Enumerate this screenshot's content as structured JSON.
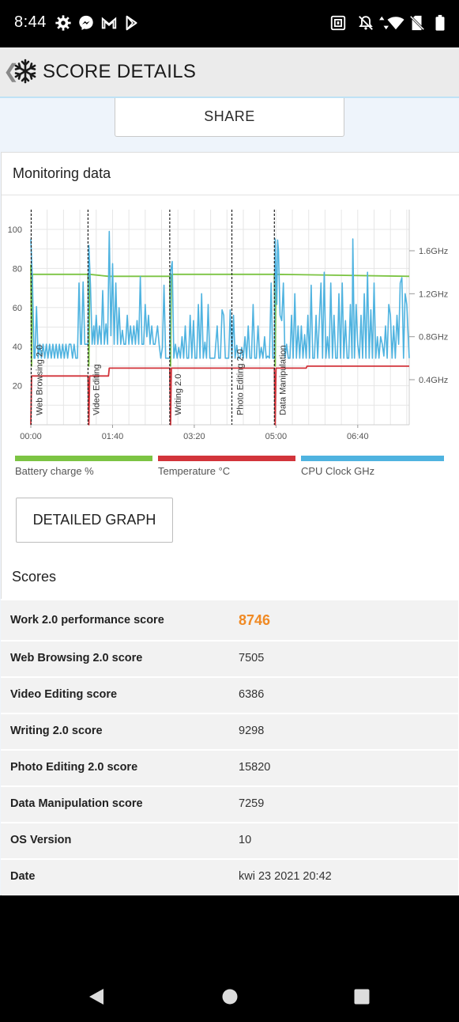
{
  "status_bar": {
    "time": "8:44",
    "icons": [
      "settings-icon",
      "messenger-icon",
      "gmail-icon",
      "play-store-icon",
      "nfc-icon",
      "notifications-off-icon",
      "data-arrows-icon",
      "wifi-icon",
      "no-sim-icon",
      "battery-icon"
    ]
  },
  "app_bar": {
    "title": "SCORE DETAILS",
    "icons": [
      "back-chevron-icon",
      "3dmark-snowflake-logo-icon"
    ]
  },
  "share_label": "SHARE",
  "monitoring": {
    "title": "Monitoring data"
  },
  "chart_data": {
    "type": "line",
    "x_tick_labels": [
      "00:00",
      "01:40",
      "03:20",
      "05:00",
      "06:40"
    ],
    "x_tick_seconds": [
      0,
      100,
      200,
      300,
      400
    ],
    "xlim": [
      0,
      463
    ],
    "y_left_ticks": [
      20,
      40,
      60,
      80,
      100
    ],
    "ylim_left": [
      0,
      105
    ],
    "y_right_tick_labels": [
      "0.4GHz",
      "0.8GHz",
      "1.2GHz",
      "1.6GHz"
    ],
    "y_right_ticks_ghz": [
      0.4,
      0.8,
      1.2,
      1.6
    ],
    "ylim_right_ghz": [
      0,
      1.8
    ],
    "grid": true,
    "legend_position": "bottom",
    "segments": [
      {
        "label": "Web Browsing 2.0",
        "start": 0
      },
      {
        "label": "Video Editing",
        "start": 70
      },
      {
        "label": "Writing 2.0",
        "start": 170
      },
      {
        "label": "Photo Editing 2.0",
        "start": 246
      },
      {
        "label": "Data Manipulation",
        "start": 298
      }
    ],
    "series": [
      {
        "name": "Battery charge %",
        "color": "#7cc443",
        "points": [
          [
            0,
            82
          ],
          [
            1,
            30
          ],
          [
            2,
            77
          ],
          [
            70,
            77
          ],
          [
            71,
            30
          ],
          [
            72,
            77
          ],
          [
            95,
            76
          ],
          [
            170,
            76
          ],
          [
            171,
            30
          ],
          [
            172,
            77
          ],
          [
            298,
            77
          ],
          [
            299,
            30
          ],
          [
            300,
            77
          ],
          [
            463,
            76
          ]
        ]
      },
      {
        "name": "Temperature °C",
        "color": "#d2343b",
        "points": [
          [
            0,
            0
          ],
          [
            1,
            25
          ],
          [
            70,
            25
          ],
          [
            71,
            0
          ],
          [
            72,
            25
          ],
          [
            95,
            25
          ],
          [
            96,
            29
          ],
          [
            170,
            29
          ],
          [
            171,
            0
          ],
          [
            172,
            29
          ],
          [
            298,
            29
          ],
          [
            299,
            0
          ],
          [
            300,
            29
          ],
          [
            337,
            29
          ],
          [
            338,
            30
          ],
          [
            463,
            30
          ]
        ]
      },
      {
        "name": "CPU Clock GHz",
        "color": "#4fb3e0",
        "axis": "right",
        "points": [
          [
            0,
            1.71
          ],
          [
            2,
            1.32
          ],
          [
            4,
            0.6
          ],
          [
            5,
            0.6
          ],
          [
            7,
            1.08
          ],
          [
            9,
            0.6
          ],
          [
            11,
            0.73
          ],
          [
            13,
            0.6
          ],
          [
            15,
            0.73
          ],
          [
            17,
            0.6
          ],
          [
            19,
            0.73
          ],
          [
            21,
            0.6
          ],
          [
            23,
            0.73
          ],
          [
            25,
            0.6
          ],
          [
            27,
            0.73
          ],
          [
            29,
            0.6
          ],
          [
            31,
            0.73
          ],
          [
            33,
            0.6
          ],
          [
            35,
            0.73
          ],
          [
            37,
            0.6
          ],
          [
            39,
            0.73
          ],
          [
            41,
            0.6
          ],
          [
            43,
            0.73
          ],
          [
            45,
            0.6
          ],
          [
            47,
            0.73
          ],
          [
            49,
            0.73
          ],
          [
            51,
            0.6
          ],
          [
            53,
            0.73
          ],
          [
            55,
            0.6
          ],
          [
            57,
            0.6
          ],
          [
            59,
            1.3
          ],
          [
            61,
            0.73
          ],
          [
            62,
            0.73
          ],
          [
            64,
            1.31
          ],
          [
            66,
            0.73
          ],
          [
            68,
            0.73
          ],
          [
            70,
            0.73
          ],
          [
            71,
            1.65
          ],
          [
            73,
            1.28
          ],
          [
            75,
            0.73
          ],
          [
            77,
            0.9
          ],
          [
            78,
            0.73
          ],
          [
            80,
            1.0
          ],
          [
            82,
            0.73
          ],
          [
            84,
            0.9
          ],
          [
            86,
            0.73
          ],
          [
            88,
            1.23
          ],
          [
            90,
            0.73
          ],
          [
            92,
            0.92
          ],
          [
            94,
            0.73
          ],
          [
            96,
            1.78
          ],
          [
            98,
            0.81
          ],
          [
            100,
            1.48
          ],
          [
            102,
            0.73
          ],
          [
            104,
            1.3
          ],
          [
            106,
            0.73
          ],
          [
            108,
            1.07
          ],
          [
            110,
            0.73
          ],
          [
            112,
            0.86
          ],
          [
            114,
            0.73
          ],
          [
            116,
            0.73
          ],
          [
            118,
            1.0
          ],
          [
            120,
            0.73
          ],
          [
            122,
            0.9
          ],
          [
            124,
            0.73
          ],
          [
            126,
            0.9
          ],
          [
            128,
            0.73
          ],
          [
            130,
            0.95
          ],
          [
            132,
            0.73
          ],
          [
            134,
            1.36
          ],
          [
            136,
            0.73
          ],
          [
            138,
            0.73
          ],
          [
            140,
            1.1
          ],
          [
            142,
            0.8
          ],
          [
            144,
            1.0
          ],
          [
            146,
            0.73
          ],
          [
            148,
            0.9
          ],
          [
            150,
            0.73
          ],
          [
            152,
            0.73
          ],
          [
            155,
            0.9
          ],
          [
            157,
            0.73
          ],
          [
            159,
            0.6
          ],
          [
            161,
            0.7
          ],
          [
            163,
            1.28
          ],
          [
            165,
            0.6
          ],
          [
            167,
            0.6
          ],
          [
            170,
            0.6
          ],
          [
            171,
            1.4
          ],
          [
            173,
            1.5
          ],
          [
            175,
            0.6
          ],
          [
            177,
            0.73
          ],
          [
            179,
            0.6
          ],
          [
            181,
            0.7
          ],
          [
            183,
            0.6
          ],
          [
            185,
            0.8
          ],
          [
            187,
            0.6
          ],
          [
            189,
            0.9
          ],
          [
            191,
            0.6
          ],
          [
            193,
            0.6
          ],
          [
            195,
            1.0
          ],
          [
            197,
            0.6
          ],
          [
            199,
            0.95
          ],
          [
            201,
            0.6
          ],
          [
            203,
            0.6
          ],
          [
            205,
            1.1
          ],
          [
            207,
            0.6
          ],
          [
            209,
            1.2
          ],
          [
            211,
            0.6
          ],
          [
            213,
            0.75
          ],
          [
            215,
            0.6
          ],
          [
            217,
            1.1
          ],
          [
            219,
            0.6
          ],
          [
            221,
            0.6
          ],
          [
            223,
            0.6
          ],
          [
            225,
            0.6
          ],
          [
            228,
            0.9
          ],
          [
            230,
            0.6
          ],
          [
            232,
            0.6
          ],
          [
            234,
            1.05
          ],
          [
            236,
            1.0
          ],
          [
            238,
            0.6
          ],
          [
            240,
            0.6
          ],
          [
            242,
            0.6
          ],
          [
            244,
            1.05
          ],
          [
            246,
            0.6
          ],
          [
            248,
            1.0
          ],
          [
            250,
            0.6
          ],
          [
            252,
            0.72
          ],
          [
            254,
            0.6
          ],
          [
            256,
            0.6
          ],
          [
            258,
            0.7
          ],
          [
            260,
            0.6
          ],
          [
            262,
            0.8
          ],
          [
            264,
            0.6
          ],
          [
            266,
            0.9
          ],
          [
            268,
            0.6
          ],
          [
            270,
            0.6
          ],
          [
            272,
            1.1
          ],
          [
            274,
            0.6
          ],
          [
            276,
            0.6
          ],
          [
            278,
            0.9
          ],
          [
            280,
            0.6
          ],
          [
            282,
            0.7
          ],
          [
            284,
            0.6
          ],
          [
            286,
            0.8
          ],
          [
            288,
            0.6
          ],
          [
            290,
            0.62
          ],
          [
            292,
            0.6
          ],
          [
            294,
            1.3
          ],
          [
            296,
            0.6
          ],
          [
            298,
            0.6
          ],
          [
            299,
            1.71
          ],
          [
            301,
            1.1
          ],
          [
            302,
            1.7
          ],
          [
            303,
            1.6
          ],
          [
            305,
            1.0
          ],
          [
            307,
            0.95
          ],
          [
            309,
            1.3
          ],
          [
            311,
            0.6
          ],
          [
            313,
            0.73
          ],
          [
            315,
            0.6
          ],
          [
            317,
            0.6
          ],
          [
            319,
            1.0
          ],
          [
            321,
            0.6
          ],
          [
            323,
            1.2
          ],
          [
            325,
            0.6
          ],
          [
            327,
            0.9
          ],
          [
            329,
            0.6
          ],
          [
            331,
            0.9
          ],
          [
            333,
            0.6
          ],
          [
            335,
            0.82
          ],
          [
            337,
            0.6
          ],
          [
            339,
            1.0
          ],
          [
            341,
            0.6
          ],
          [
            343,
            1.28
          ],
          [
            345,
            0.6
          ],
          [
            347,
            0.6
          ],
          [
            349,
            1.0
          ],
          [
            351,
            0.6
          ],
          [
            353,
            0.95
          ],
          [
            355,
            1.3
          ],
          [
            357,
            0.6
          ],
          [
            359,
            1.4
          ],
          [
            361,
            0.6
          ],
          [
            363,
            0.8
          ],
          [
            365,
            0.6
          ],
          [
            367,
            1.3
          ],
          [
            369,
            0.6
          ],
          [
            371,
            1.0
          ],
          [
            373,
            0.6
          ],
          [
            375,
            0.6
          ],
          [
            377,
            1.2
          ],
          [
            379,
            0.6
          ],
          [
            381,
            1.3
          ],
          [
            383,
            0.6
          ],
          [
            385,
            0.95
          ],
          [
            387,
            0.6
          ],
          [
            389,
            0.6
          ],
          [
            391,
            1.1
          ],
          [
            393,
            0.6
          ],
          [
            394,
            1.71
          ],
          [
            396,
            0.6
          ],
          [
            398,
            1.1
          ],
          [
            400,
            0.73
          ],
          [
            402,
            0.6
          ],
          [
            404,
            1.0
          ],
          [
            406,
            0.6
          ],
          [
            408,
            1.2
          ],
          [
            410,
            0.6
          ],
          [
            412,
            1.4
          ],
          [
            414,
            0.6
          ],
          [
            416,
            1.05
          ],
          [
            418,
            0.6
          ],
          [
            420,
            1.3
          ],
          [
            422,
            0.6
          ],
          [
            424,
            0.8
          ],
          [
            426,
            0.6
          ],
          [
            428,
            0.8
          ],
          [
            430,
            0.73
          ],
          [
            432,
            0.62
          ],
          [
            434,
            0.9
          ],
          [
            436,
            0.6
          ],
          [
            438,
            1.1
          ],
          [
            440,
            1.0
          ],
          [
            442,
            0.6
          ],
          [
            444,
            0.9
          ],
          [
            446,
            0.6
          ],
          [
            448,
            1.0
          ],
          [
            450,
            0.73
          ],
          [
            452,
            1.3
          ],
          [
            454,
            1.35
          ],
          [
            456,
            0.6
          ],
          [
            458,
            1.2
          ],
          [
            460,
            1.1
          ],
          [
            463,
            0.6
          ]
        ]
      }
    ]
  },
  "detailed_graph_label": "DETAILED GRAPH",
  "scores": {
    "title": "Scores",
    "rows": [
      {
        "label": "Work 2.0 performance score",
        "value": "8746"
      },
      {
        "label": "Web Browsing 2.0 score",
        "value": "7505"
      },
      {
        "label": "Video Editing score",
        "value": "6386"
      },
      {
        "label": "Writing 2.0 score",
        "value": "9298"
      },
      {
        "label": "Photo Editing 2.0 score",
        "value": "15820"
      },
      {
        "label": "Data Manipulation score",
        "value": "7259"
      },
      {
        "label": "OS Version",
        "value": "10"
      },
      {
        "label": "Date",
        "value": "kwi 23 2021 20:42"
      }
    ]
  },
  "nav_bar": {
    "icons": [
      "back-triangle-icon",
      "home-circle-icon",
      "recents-square-icon"
    ]
  }
}
